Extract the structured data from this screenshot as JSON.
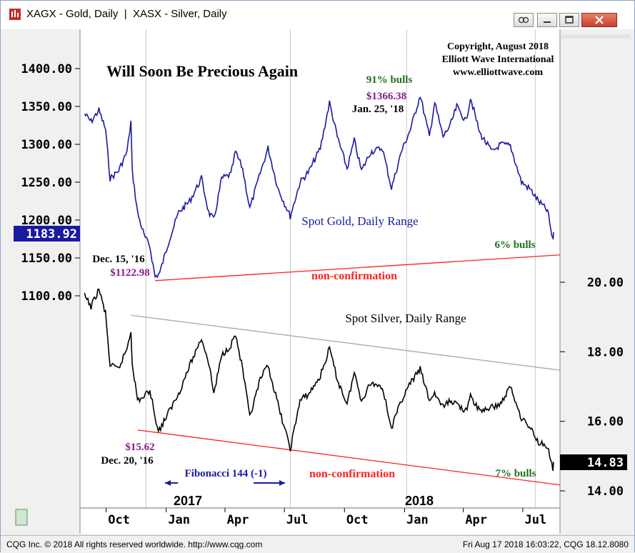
{
  "window": {
    "title": "XAGX - Gold, Daily  |  XASX - Silver, Daily"
  },
  "statusbar": {
    "left": "CQG Inc. © 2018 All rights reserved worldwide. http://www.cqg.com",
    "right": "Fri Aug 17 2018 16:03:22, CQG 18.12.8080"
  },
  "chart_data": {
    "type": "line",
    "title": "Will Soon Be Precious Again",
    "copyright": [
      "Copyright, August 2018",
      "Elliott Wave International",
      "www.elliottwave.com"
    ],
    "x_tick_labels": [
      "Oct",
      "Jan",
      "Apr",
      "Jul",
      "Oct",
      "Jan",
      "Apr",
      "Jul"
    ],
    "year_labels": [
      "2017",
      "2018"
    ],
    "left_axis": {
      "tick_labels": [
        "1400.00",
        "1350.00",
        "1300.00",
        "1250.00",
        "1200.00",
        "1150.00",
        "1100.00"
      ],
      "ylim": [
        1100,
        1400
      ],
      "last_value": "1183.92",
      "last_value_color": "#1a1aa0"
    },
    "right_axis": {
      "tick_labels": [
        "20.00",
        "18.00",
        "16.00",
        "14.00"
      ],
      "ylim": [
        14,
        20
      ],
      "last_value": "14.83",
      "last_value_color": "#000000"
    },
    "series": [
      {
        "name": "Spot Gold, Daily Range",
        "color": "#1a1aa0",
        "axis": "left",
        "points": [
          [
            "2016-08-29",
            1340
          ],
          [
            "2016-09-08",
            1330
          ],
          [
            "2016-09-20",
            1345
          ],
          [
            "2016-09-30",
            1320
          ],
          [
            "2016-10-07",
            1255
          ],
          [
            "2016-10-20",
            1265
          ],
          [
            "2016-11-02",
            1290
          ],
          [
            "2016-11-08",
            1330
          ],
          [
            "2016-11-10",
            1265
          ],
          [
            "2016-11-18",
            1210
          ],
          [
            "2016-11-28",
            1180
          ],
          [
            "2016-12-07",
            1165
          ],
          [
            "2016-12-15",
            1125
          ],
          [
            "2016-12-22",
            1130
          ],
          [
            "2017-01-06",
            1175
          ],
          [
            "2017-01-20",
            1210
          ],
          [
            "2017-02-06",
            1225
          ],
          [
            "2017-02-24",
            1255
          ],
          [
            "2017-03-07",
            1210
          ],
          [
            "2017-03-15",
            1200
          ],
          [
            "2017-03-27",
            1255
          ],
          [
            "2017-04-10",
            1260
          ],
          [
            "2017-04-17",
            1290
          ],
          [
            "2017-04-28",
            1268
          ],
          [
            "2017-05-09",
            1215
          ],
          [
            "2017-05-25",
            1262
          ],
          [
            "2017-06-06",
            1295
          ],
          [
            "2017-06-21",
            1242
          ],
          [
            "2017-07-10",
            1205
          ],
          [
            "2017-07-25",
            1250
          ],
          [
            "2017-08-08",
            1265
          ],
          [
            "2017-08-25",
            1295
          ],
          [
            "2017-09-08",
            1355
          ],
          [
            "2017-09-20",
            1310
          ],
          [
            "2017-10-05",
            1268
          ],
          [
            "2017-10-16",
            1305
          ],
          [
            "2017-10-27",
            1265
          ],
          [
            "2017-11-10",
            1290
          ],
          [
            "2017-11-28",
            1295
          ],
          [
            "2017-12-12",
            1242
          ],
          [
            "2017-12-27",
            1290
          ],
          [
            "2018-01-10",
            1320
          ],
          [
            "2018-01-25",
            1365
          ],
          [
            "2018-02-08",
            1310
          ],
          [
            "2018-02-16",
            1355
          ],
          [
            "2018-03-01",
            1310
          ],
          [
            "2018-03-12",
            1325
          ],
          [
            "2018-03-22",
            1350
          ],
          [
            "2018-04-05",
            1330
          ],
          [
            "2018-04-12",
            1362
          ],
          [
            "2018-04-26",
            1315
          ],
          [
            "2018-05-15",
            1290
          ],
          [
            "2018-05-28",
            1300
          ],
          [
            "2018-06-12",
            1298
          ],
          [
            "2018-06-29",
            1250
          ],
          [
            "2018-07-13",
            1240
          ],
          [
            "2018-07-25",
            1225
          ],
          [
            "2018-08-08",
            1212
          ],
          [
            "2018-08-16",
            1172
          ],
          [
            "2018-08-17",
            1184
          ]
        ]
      },
      {
        "name": "Spot Silver, Daily Range",
        "color": "#000000",
        "axis": "right",
        "points": [
          [
            "2016-08-29",
            19.6
          ],
          [
            "2016-09-08",
            19.3
          ],
          [
            "2016-09-20",
            19.8
          ],
          [
            "2016-09-30",
            19.1
          ],
          [
            "2016-10-07",
            17.6
          ],
          [
            "2016-10-20",
            17.5
          ],
          [
            "2016-11-02",
            18.1
          ],
          [
            "2016-11-08",
            18.6
          ],
          [
            "2016-11-10",
            17.7
          ],
          [
            "2016-11-18",
            16.6
          ],
          [
            "2016-11-28",
            16.7
          ],
          [
            "2016-12-07",
            16.9
          ],
          [
            "2016-12-20",
            15.7
          ],
          [
            "2017-01-06",
            16.3
          ],
          [
            "2017-01-20",
            16.8
          ],
          [
            "2017-02-06",
            17.6
          ],
          [
            "2017-02-24",
            18.4
          ],
          [
            "2017-03-07",
            17.7
          ],
          [
            "2017-03-15",
            16.8
          ],
          [
            "2017-03-27",
            17.9
          ],
          [
            "2017-04-10",
            18.2
          ],
          [
            "2017-04-17",
            18.5
          ],
          [
            "2017-04-28",
            17.5
          ],
          [
            "2017-05-09",
            16.1
          ],
          [
            "2017-05-25",
            17.2
          ],
          [
            "2017-06-06",
            17.6
          ],
          [
            "2017-06-21",
            16.5
          ],
          [
            "2017-07-10",
            15.2
          ],
          [
            "2017-07-25",
            16.6
          ],
          [
            "2017-08-08",
            16.8
          ],
          [
            "2017-08-25",
            17.3
          ],
          [
            "2017-09-08",
            18.1
          ],
          [
            "2017-09-20",
            17.2
          ],
          [
            "2017-10-05",
            16.5
          ],
          [
            "2017-10-16",
            17.4
          ],
          [
            "2017-10-27",
            16.6
          ],
          [
            "2017-11-10",
            17.1
          ],
          [
            "2017-11-28",
            17.0
          ],
          [
            "2017-12-12",
            15.8
          ],
          [
            "2017-12-27",
            16.6
          ],
          [
            "2018-01-10",
            17.1
          ],
          [
            "2018-01-25",
            17.5
          ],
          [
            "2018-02-08",
            16.6
          ],
          [
            "2018-02-16",
            16.8
          ],
          [
            "2018-03-01",
            16.4
          ],
          [
            "2018-03-12",
            16.6
          ],
          [
            "2018-03-22",
            16.5
          ],
          [
            "2018-04-05",
            16.3
          ],
          [
            "2018-04-12",
            16.7
          ],
          [
            "2018-04-26",
            16.3
          ],
          [
            "2018-05-15",
            16.4
          ],
          [
            "2018-05-28",
            16.5
          ],
          [
            "2018-06-12",
            17.0
          ],
          [
            "2018-06-29",
            16.1
          ],
          [
            "2018-07-13",
            15.8
          ],
          [
            "2018-07-25",
            15.4
          ],
          [
            "2018-08-08",
            15.3
          ],
          [
            "2018-08-16",
            14.6
          ],
          [
            "2018-08-17",
            14.83
          ]
        ]
      }
    ],
    "trendlines": [
      {
        "name": "gold-support",
        "color": "#ff2020",
        "axis": "left",
        "from": [
          "2016-12-15",
          1120
        ],
        "to": [
          "2018-08-27",
          1154
        ]
      },
      {
        "name": "silver-support",
        "color": "#ff2020",
        "axis": "right",
        "from": [
          "2016-11-18",
          15.75
        ],
        "to": [
          "2018-08-27",
          14.17
        ]
      },
      {
        "name": "silver-resistance",
        "color": "#a8a8a8",
        "axis": "right",
        "from": [
          "2016-11-08",
          19.05
        ],
        "to": [
          "2018-08-27",
          17.47
        ]
      }
    ],
    "annotations": {
      "gold_label": "Spot Gold, Daily Range",
      "silver_label": "Spot Silver, Daily Range",
      "gold_high_bulls": "91% bulls",
      "gold_high_price": "$1366.38",
      "gold_high_date": "Jan. 25, '18",
      "gold_low_date": "Dec. 15, '16",
      "gold_low_price": "$1122.98",
      "gold_now_bulls": "6% bulls",
      "silver_low_price": "$15.62",
      "silver_low_date": "Dec. 20, '16",
      "silver_now_bulls": "7% bulls",
      "non_confirmation_gold": "non-confirmation",
      "non_confirmation_silver": "non-confirmation",
      "fibonacci": "Fibonacci 144 (-1)"
    },
    "colors": {
      "gold": "#1a1aa0",
      "silver": "#000000",
      "trend": "#ff2020",
      "price_label": "#8a1a8a",
      "bulls": "#207020"
    }
  }
}
